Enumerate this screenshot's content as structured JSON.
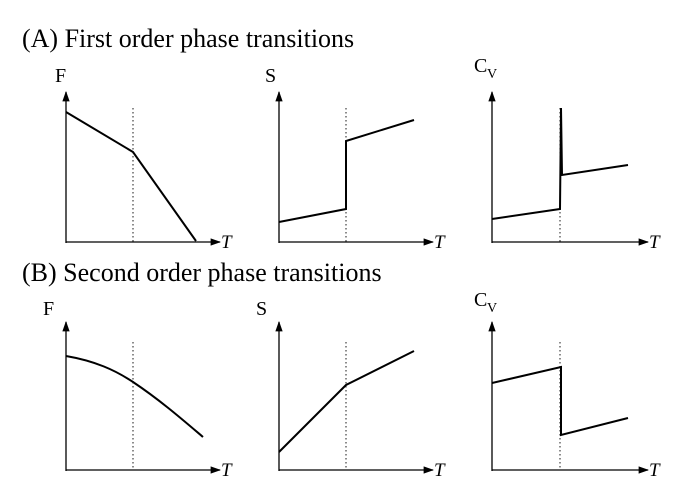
{
  "sections": [
    {
      "title": "(A) First order phase transitions",
      "panels": [
        {
          "ylabel": "F",
          "ylabel_sub": "",
          "xlabel": "T"
        },
        {
          "ylabel": "S",
          "ylabel_sub": "",
          "xlabel": "T"
        },
        {
          "ylabel": "C",
          "ylabel_sub": "V",
          "xlabel": "T"
        }
      ]
    },
    {
      "title": "(B) Second order phase transitions",
      "panels": [
        {
          "ylabel": "F",
          "ylabel_sub": "",
          "xlabel": "T"
        },
        {
          "ylabel": "S",
          "ylabel_sub": "",
          "xlabel": "T"
        },
        {
          "ylabel": "C",
          "ylabel_sub": "V",
          "xlabel": "T"
        }
      ]
    }
  ],
  "colors": {
    "ink": "#000000",
    "background": "#ffffff"
  }
}
